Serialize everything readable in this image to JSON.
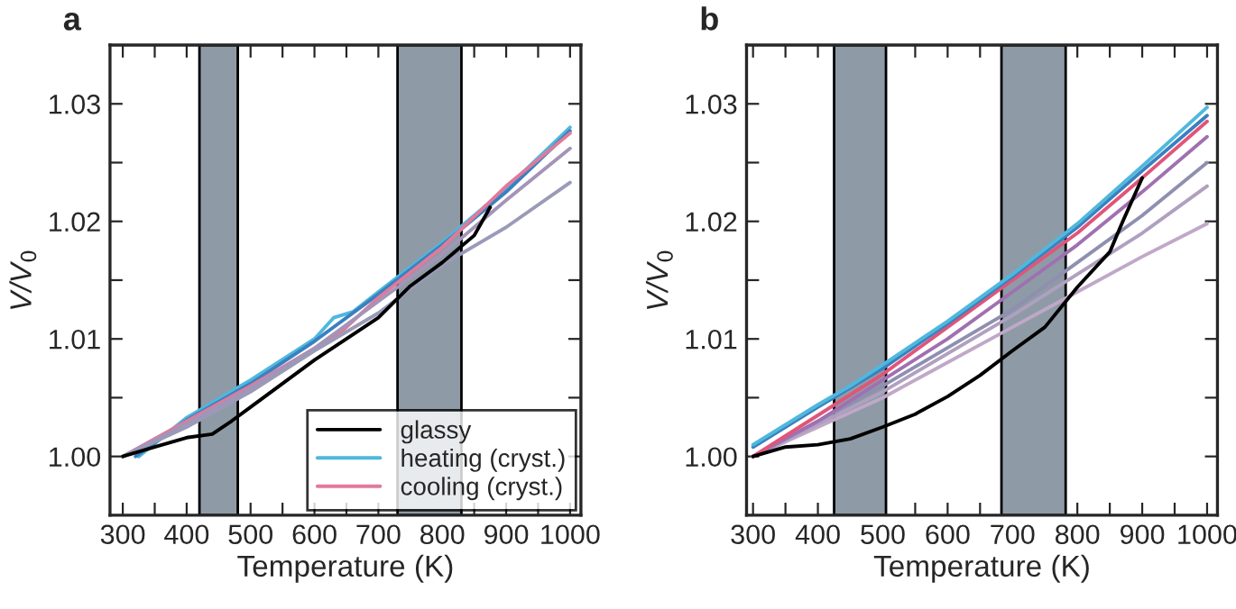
{
  "chart_data": [
    {
      "type": "line",
      "title": "a",
      "xlabel": "Temperature (K)",
      "ylabel": "V/V$_{0}$",
      "xlim": [
        280,
        1017
      ],
      "ylim": [
        0.995,
        1.035
      ],
      "xticks": [
        300,
        {
          "value": 350,
          "label": null
        },
        400,
        {
          "value": 450,
          "label": null
        },
        500,
        {
          "value": 550,
          "label": null
        },
        600,
        {
          "value": 650,
          "label": null
        },
        700,
        {
          "value": 750,
          "label": null
        },
        800,
        {
          "value": 850,
          "label": null
        },
        900,
        {
          "value": 950,
          "label": null
        },
        1000
      ],
      "yticks": [
        {
          "value": 1.0,
          "label": "1.00"
        },
        {
          "value": 1.005,
          "label": null
        },
        {
          "value": 1.01,
          "label": "1.01"
        },
        {
          "value": 1.015,
          "label": null
        },
        {
          "value": 1.02,
          "label": "1.02"
        },
        {
          "value": 1.025,
          "label": null
        },
        {
          "value": 1.03,
          "label": "1.03"
        }
      ],
      "bands": [
        {
          "axis": "x",
          "from": 420,
          "to": 480,
          "color": "#8e9ba6"
        },
        {
          "axis": "x",
          "from": 730,
          "to": 830,
          "color": "#8e9ba6"
        }
      ],
      "legend": "bottom right",
      "grid": false,
      "series": [
        {
          "name": "heating (cryst.)",
          "color": "#4fb8dc",
          "x": [
            325,
            400,
            500,
            600,
            630,
            660,
            700,
            800,
            900,
            1000
          ],
          "values": [
            1.0,
            1.0033,
            1.0065,
            1.01,
            1.0118,
            1.0123,
            1.014,
            1.0182,
            1.0228,
            1.028
          ]
        },
        {
          "color": "#3a80c0",
          "x": [
            320,
            400,
            500,
            600,
            700,
            800,
            900,
            1000
          ],
          "values": [
            1.0,
            1.0031,
            1.0062,
            1.0098,
            1.0138,
            1.018,
            1.0225,
            1.0277
          ]
        },
        {
          "name": "cooling (cryst.)",
          "color": "#e07a9a",
          "x": [
            300,
            400,
            500,
            600,
            640,
            700,
            800,
            900,
            1000
          ],
          "values": [
            1.0,
            1.003,
            1.006,
            1.0092,
            1.0105,
            1.0135,
            1.0178,
            1.023,
            1.0275
          ]
        },
        {
          "color": "#a494b8",
          "x": [
            300,
            400,
            500,
            600,
            700,
            800,
            900,
            1000
          ],
          "values": [
            1.0,
            1.0028,
            1.0058,
            1.0092,
            1.0132,
            1.0172,
            1.0218,
            1.0262
          ]
        },
        {
          "color": "#9a9ab8",
          "x": [
            300,
            400,
            500,
            600,
            700,
            800,
            900,
            1000
          ],
          "values": [
            1.0,
            1.0025,
            1.0055,
            1.009,
            1.0122,
            1.0163,
            1.0195,
            1.0233
          ]
        },
        {
          "name": "glassy",
          "color": "#000000",
          "x": [
            300,
            350,
            400,
            440,
            470,
            500,
            600,
            700,
            750,
            800,
            850,
            875
          ],
          "values": [
            1.0,
            1.0008,
            1.0016,
            1.0019,
            1.003,
            1.0042,
            1.0082,
            1.0118,
            1.0145,
            1.0165,
            1.0188,
            1.0212
          ]
        }
      ]
    },
    {
      "type": "line",
      "title": "b",
      "xlabel": "Temperature (K)",
      "ylabel": "V/V$_{0}$",
      "xlim": [
        290,
        1016
      ],
      "ylim": [
        0.995,
        1.035
      ],
      "xticks": [
        300,
        {
          "value": 350,
          "label": null
        },
        400,
        {
          "value": 450,
          "label": null
        },
        500,
        {
          "value": 550,
          "label": null
        },
        600,
        {
          "value": 650,
          "label": null
        },
        700,
        {
          "value": 750,
          "label": null
        },
        800,
        {
          "value": 850,
          "label": null
        },
        900,
        {
          "value": 950,
          "label": null
        },
        1000
      ],
      "yticks": [
        {
          "value": 1.0,
          "label": "1.00"
        },
        {
          "value": 1.005,
          "label": null
        },
        {
          "value": 1.01,
          "label": "1.01"
        },
        {
          "value": 1.015,
          "label": null
        },
        {
          "value": 1.02,
          "label": "1.02"
        },
        {
          "value": 1.025,
          "label": null
        },
        {
          "value": 1.03,
          "label": "1.03"
        }
      ],
      "bands": [
        {
          "axis": "x",
          "from": 425,
          "to": 505,
          "color": "#8e9ba6"
        },
        {
          "axis": "x",
          "from": 683,
          "to": 782,
          "color": "#8e9ba6"
        }
      ],
      "grid": false,
      "series": [
        {
          "color": "#c0a8c8",
          "x": [
            300,
            500,
            700,
            800,
            900,
            1000
          ],
          "values": [
            1.0,
            1.005,
            1.011,
            1.014,
            1.017,
            1.0198
          ]
        },
        {
          "color": "#b0a0c0",
          "x": [
            300,
            500,
            700,
            800,
            900,
            1000
          ],
          "values": [
            1.0,
            1.0055,
            1.012,
            1.0155,
            1.019,
            1.023
          ]
        },
        {
          "color": "#8f8fb0",
          "x": [
            300,
            500,
            700,
            800,
            900,
            1000
          ],
          "values": [
            1.0,
            1.006,
            1.0125,
            1.0165,
            1.0205,
            1.025
          ]
        },
        {
          "color": "#a070b0",
          "x": [
            300,
            400,
            500,
            600,
            700,
            800,
            900,
            1000
          ],
          "values": [
            1.0,
            1.003,
            1.0065,
            1.01,
            1.014,
            1.018,
            1.0225,
            1.0272
          ]
        },
        {
          "color": "#e0557a",
          "x": [
            300,
            400,
            500,
            600,
            700,
            800,
            900,
            1000
          ],
          "values": [
            1.0,
            1.0035,
            1.007,
            1.011,
            1.015,
            1.019,
            1.0237,
            1.0285
          ]
        },
        {
          "color": "#3a80c0",
          "x": [
            300,
            400,
            500,
            600,
            700,
            800,
            900,
            1000
          ],
          "values": [
            1.0008,
            1.0042,
            1.0075,
            1.0113,
            1.0153,
            1.0195,
            1.0243,
            1.029
          ]
        },
        {
          "color": "#4fb8dc",
          "x": [
            300,
            400,
            450,
            500,
            600,
            700,
            800,
            900,
            1000
          ],
          "values": [
            1.001,
            1.0044,
            1.006,
            1.0078,
            1.0115,
            1.0155,
            1.0198,
            1.0247,
            1.0297
          ]
        },
        {
          "color": "#000000",
          "x": [
            300,
            350,
            400,
            450,
            500,
            550,
            600,
            650,
            700,
            750,
            800,
            850,
            870,
            900
          ],
          "values": [
            1.0,
            1.0008,
            1.001,
            1.0015,
            1.0025,
            1.0036,
            1.0051,
            1.0069,
            1.009,
            1.011,
            1.0144,
            1.0174,
            1.02,
            1.0237
          ]
        }
      ]
    }
  ]
}
